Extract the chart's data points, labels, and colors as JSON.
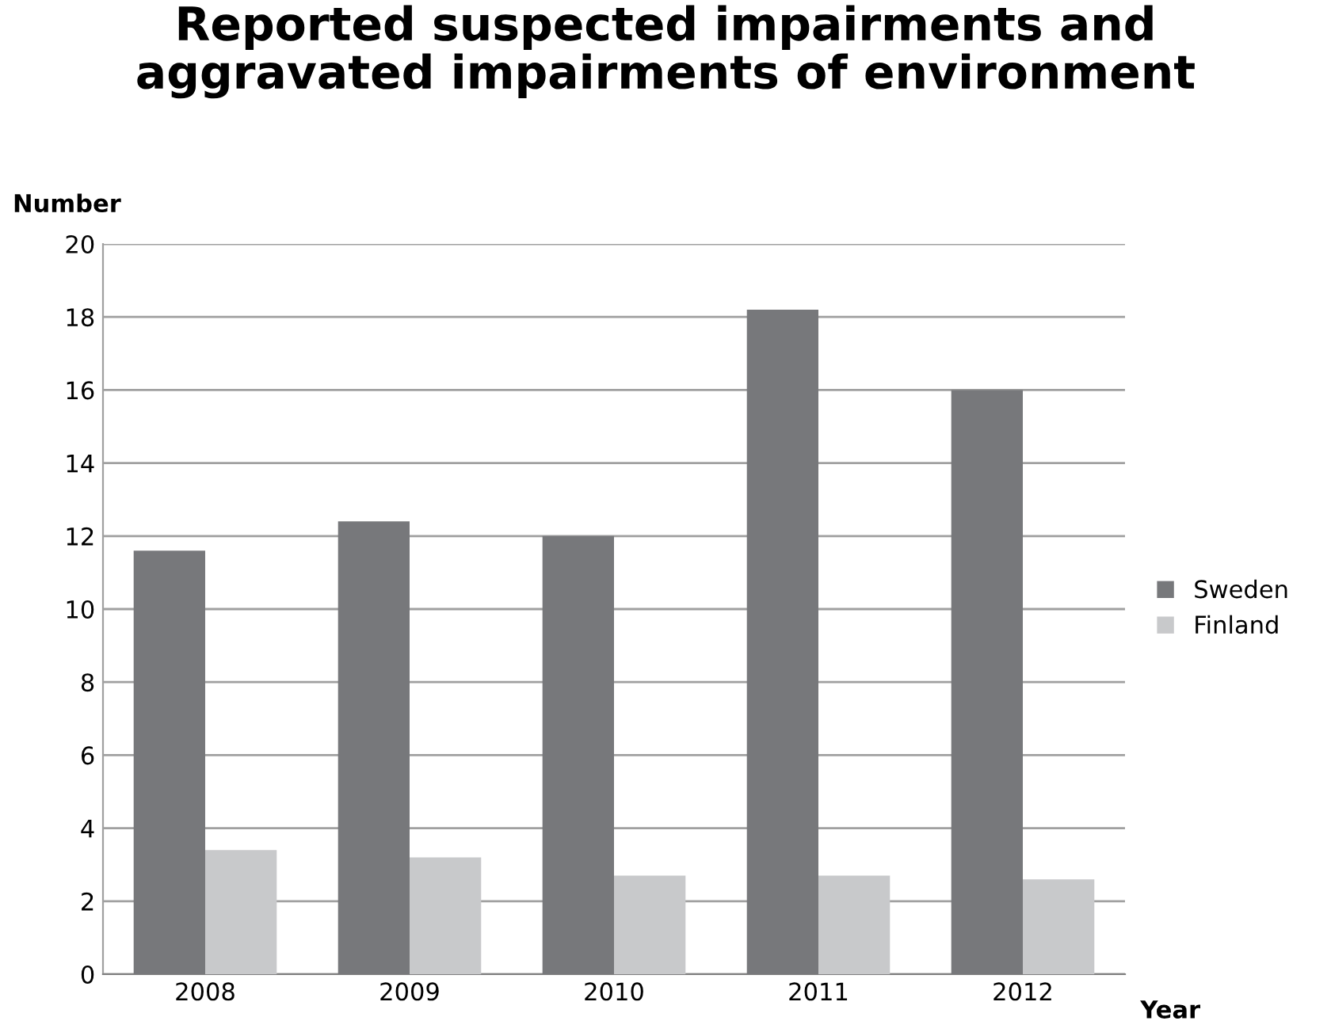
{
  "chart_data": {
    "type": "bar",
    "title": "Reported suspected impairments and\naggravated impairments of environment",
    "ylabel": "Number",
    "xlabel": "Year",
    "categories": [
      "2008",
      "2009",
      "2010",
      "2011",
      "2012"
    ],
    "series": [
      {
        "name": "Sweden",
        "color": "#77787b",
        "values": [
          11.6,
          12.4,
          12.0,
          18.2,
          16.0
        ]
      },
      {
        "name": "Finland",
        "color": "#c8c9cb",
        "values": [
          3.4,
          3.2,
          2.7,
          2.7,
          2.6
        ]
      }
    ],
    "ylim": [
      0,
      20
    ],
    "yticks": [
      0,
      2,
      4,
      6,
      8,
      10,
      12,
      14,
      16,
      18,
      20
    ],
    "grid": "y",
    "legend": "right"
  }
}
